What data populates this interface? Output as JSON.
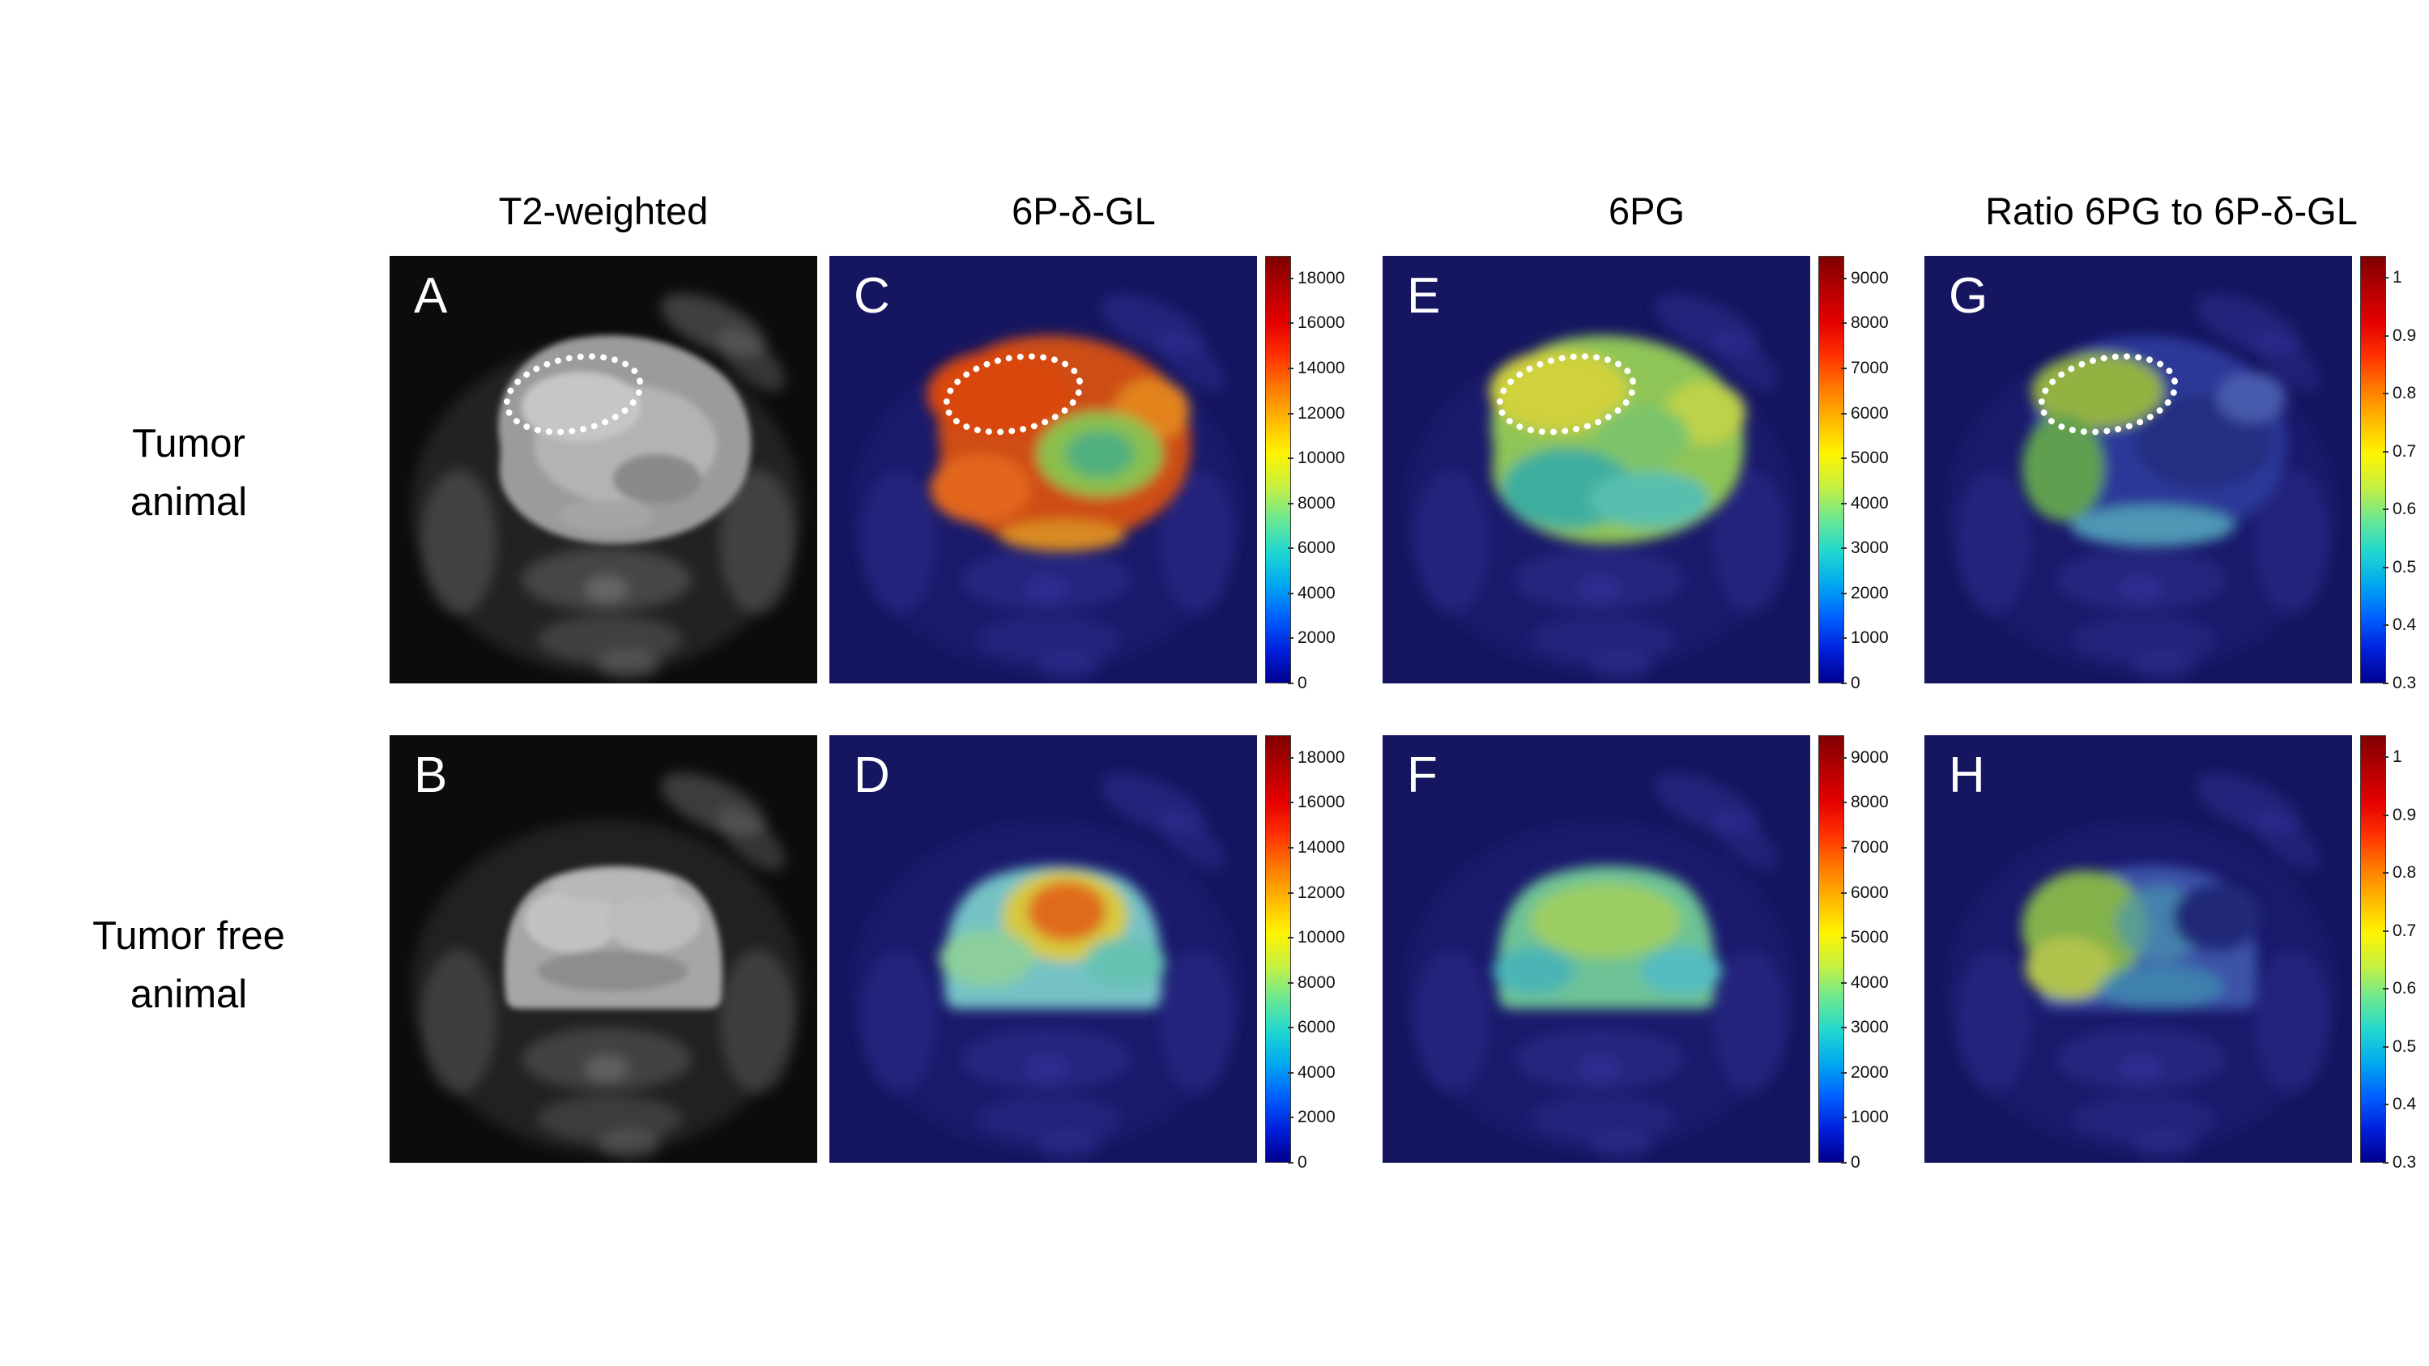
{
  "figure": {
    "columns": [
      {
        "header": "T2-weighted"
      },
      {
        "header": "6P-δ-GL"
      },
      {
        "header": "6PG"
      },
      {
        "header": "Ratio 6PG to 6P-δ-GL"
      }
    ],
    "rows": [
      {
        "line1": "Tumor",
        "line2": "animal"
      },
      {
        "line1": "Tumor free",
        "line2": "animal"
      }
    ],
    "panels": [
      {
        "label": "A"
      },
      {
        "label": "B"
      },
      {
        "label": "C"
      },
      {
        "label": "D"
      },
      {
        "label": "E"
      },
      {
        "label": "F"
      },
      {
        "label": "G"
      },
      {
        "label": "H"
      }
    ],
    "colorbars": {
      "signal18k": {
        "tick_labels": [
          "18000",
          "16000",
          "14000",
          "12000",
          "10000",
          "8000",
          "6000",
          "4000",
          "2000",
          "0"
        ],
        "tick_values": [
          18000,
          16000,
          14000,
          12000,
          10000,
          8000,
          6000,
          4000,
          2000,
          0
        ],
        "range": [
          0,
          19000
        ]
      },
      "signal9k": {
        "tick_labels": [
          "9000",
          "8000",
          "7000",
          "6000",
          "5000",
          "4000",
          "3000",
          "2000",
          "1000",
          "0"
        ],
        "tick_values": [
          9000,
          8000,
          7000,
          6000,
          5000,
          4000,
          3000,
          2000,
          1000,
          0
        ],
        "range": [
          0,
          9500
        ]
      },
      "ratio": {
        "tick_labels": [
          "1",
          "0.9",
          "0.8",
          "0.7",
          "0.6",
          "0.5",
          "0.4",
          "0.3"
        ],
        "tick_values": [
          1,
          0.9,
          0.8,
          0.7,
          0.6,
          0.5,
          0.4,
          0.3
        ],
        "range": [
          0.3,
          1.038
        ]
      }
    },
    "colors": {
      "page_background": "#ffffff",
      "t2_background": "#0c0c0c",
      "overlay_background": "#151560",
      "tumor_outline": "#ffffff",
      "jet": [
        "#7f0000",
        "#b40000",
        "#e40000",
        "#ff3000",
        "#ff7800",
        "#ffb800",
        "#fff400",
        "#c8f040",
        "#6ce890",
        "#20d8d0",
        "#00a8f0",
        "#0060ff",
        "#0020dc",
        "#00008f"
      ]
    }
  }
}
